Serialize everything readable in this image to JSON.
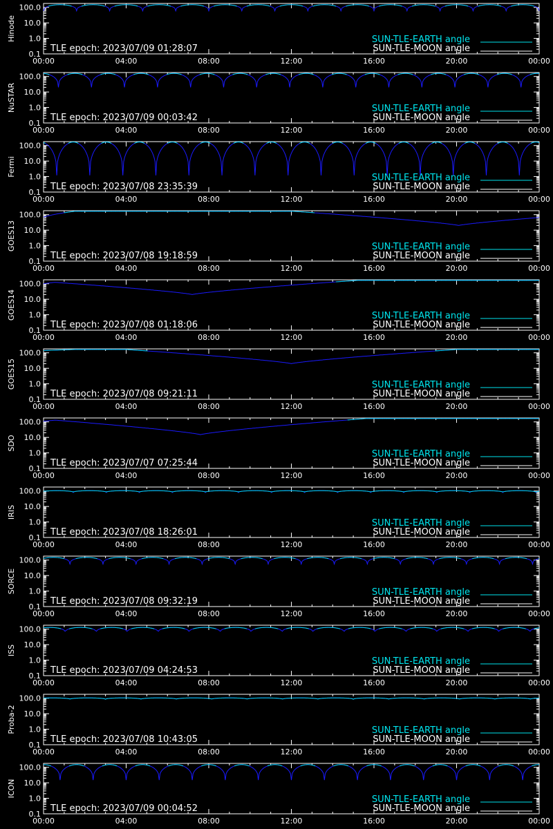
{
  "colors": {
    "background": "#000000",
    "axes": "#ffffff",
    "sun_tle_earth": "#00e5ee",
    "sun_tle_moon": "#ffffff",
    "curve": "#1a1aff"
  },
  "legend": {
    "earth_label": "SUN-TLE-EARTH angle",
    "moon_label": "SUN-TLE-MOON angle"
  },
  "chart_data": [
    {
      "type": "line",
      "ylabel": "Hinode",
      "epoch": "TLE epoch: 2023/07/09 01:28:07",
      "ylog": true,
      "ylim": [
        0.1,
        180
      ],
      "x": [
        "00:00",
        "04:00",
        "08:00",
        "12:00",
        "16:00",
        "20:00",
        "00:00"
      ],
      "yticks": [
        "100.0",
        "10.0",
        "1.0",
        "0.1"
      ],
      "curve": {
        "kind": "periodic",
        "max": 150,
        "min": 60,
        "periods": 15,
        "phase": 0.0
      }
    },
    {
      "type": "line",
      "ylabel": "NuSTAR",
      "epoch": "TLE epoch: 2023/07/09 00:03:42",
      "ylog": true,
      "ylim": [
        0.1,
        180
      ],
      "x": [
        "00:00",
        "04:00",
        "08:00",
        "12:00",
        "16:00",
        "20:00",
        "00:00"
      ],
      "yticks": [
        "100.0",
        "10.0",
        "1.0",
        "0.1"
      ],
      "curve": {
        "kind": "periodic",
        "max": 160,
        "min": 20,
        "periods": 15,
        "phase": 0.55
      }
    },
    {
      "type": "line",
      "ylabel": "Fermi",
      "epoch": "TLE epoch: 2023/07/08 23:35:39",
      "ylog": true,
      "ylim": [
        0.1,
        180
      ],
      "x": [
        "00:00",
        "04:00",
        "08:00",
        "12:00",
        "16:00",
        "20:00",
        "00:00"
      ],
      "yticks": [
        "100.0",
        "10.0",
        "1.0",
        "0.1"
      ],
      "curve": {
        "kind": "periodic",
        "max": 170,
        "min": 1.2,
        "periods": 15,
        "phase": 0.6
      }
    },
    {
      "type": "line",
      "ylabel": "GOES13",
      "epoch": "TLE epoch: 2023/07/08 19:18:59",
      "ylog": true,
      "ylim": [
        0.1,
        180
      ],
      "x": [
        "00:00",
        "04:00",
        "08:00",
        "12:00",
        "16:00",
        "20:00",
        "00:00"
      ],
      "yticks": [
        "100.0",
        "10.0",
        "1.0",
        "0.1"
      ],
      "curve": {
        "kind": "valley",
        "max": 165,
        "min": 20,
        "center_hour": 20.1,
        "start": 70
      }
    },
    {
      "type": "line",
      "ylabel": "GOES14",
      "epoch": "TLE epoch: 2023/07/08 01:18:06",
      "ylog": true,
      "ylim": [
        0.1,
        180
      ],
      "x": [
        "00:00",
        "04:00",
        "08:00",
        "12:00",
        "16:00",
        "20:00",
        "00:00"
      ],
      "yticks": [
        "100.0",
        "10.0",
        "1.0",
        "0.1"
      ],
      "curve": {
        "kind": "valley",
        "max": 165,
        "min": 20,
        "center_hour": 7.2,
        "start": 100
      }
    },
    {
      "type": "line",
      "ylabel": "GOES15",
      "epoch": "TLE epoch: 2023/07/08 09:21:11",
      "ylog": true,
      "ylim": [
        0.1,
        180
      ],
      "x": [
        "00:00",
        "04:00",
        "08:00",
        "12:00",
        "16:00",
        "20:00",
        "00:00"
      ],
      "yticks": [
        "100.0",
        "10.0",
        "1.0",
        "0.1"
      ],
      "curve": {
        "kind": "valley",
        "max": 165,
        "min": 20,
        "center_hour": 12.0,
        "start": 140
      }
    },
    {
      "type": "line",
      "ylabel": "SDO",
      "epoch": "TLE epoch: 2023/07/07 07:25:44",
      "ylog": true,
      "ylim": [
        0.1,
        180
      ],
      "x": [
        "00:00",
        "04:00",
        "08:00",
        "12:00",
        "16:00",
        "20:00",
        "00:00"
      ],
      "yticks": [
        "100.0",
        "10.0",
        "1.0",
        "0.1"
      ],
      "curve": {
        "kind": "valley",
        "max": 165,
        "min": 15,
        "center_hour": 7.6,
        "start": 110
      }
    },
    {
      "type": "line",
      "ylabel": "IRIS",
      "epoch": "TLE epoch: 2023/07/08 18:26:01",
      "ylog": true,
      "ylim": [
        0.1,
        180
      ],
      "x": [
        "00:00",
        "04:00",
        "08:00",
        "12:00",
        "16:00",
        "20:00",
        "00:00"
      ],
      "yticks": [
        "100.0",
        "10.0",
        "1.0",
        "0.1"
      ],
      "curve": {
        "kind": "periodic",
        "max": 105,
        "min": 80,
        "periods": 15,
        "phase": 0.1
      }
    },
    {
      "type": "line",
      "ylabel": "SORCE",
      "epoch": "TLE epoch: 2023/07/08 09:32:19",
      "ylog": true,
      "ylim": [
        0.1,
        180
      ],
      "x": [
        "00:00",
        "04:00",
        "08:00",
        "12:00",
        "16:00",
        "20:00",
        "00:00"
      ],
      "yticks": [
        "100.0",
        "10.0",
        "1.0",
        "0.1"
      ],
      "curve": {
        "kind": "periodic",
        "max": 150,
        "min": 55,
        "periods": 15,
        "phase": 0.2
      }
    },
    {
      "type": "line",
      "ylabel": "ISS",
      "epoch": "TLE epoch: 2023/07/09 04:24:53",
      "ylog": true,
      "ylim": [
        0.1,
        180
      ],
      "x": [
        "00:00",
        "04:00",
        "08:00",
        "12:00",
        "16:00",
        "20:00",
        "00:00"
      ],
      "yticks": [
        "100.0",
        "10.0",
        "1.0",
        "0.1"
      ],
      "curve": {
        "kind": "periodic",
        "max": 130,
        "min": 60,
        "periods": 16,
        "phase": 0.3
      }
    },
    {
      "type": "line",
      "ylabel": "Proba-2",
      "epoch": "TLE epoch: 2023/07/08 10:43:05",
      "ylog": true,
      "ylim": [
        0.1,
        180
      ],
      "x": [
        "00:00",
        "04:00",
        "08:00",
        "12:00",
        "16:00",
        "20:00",
        "00:00"
      ],
      "yticks": [
        "100.0",
        "10.0",
        "1.0",
        "0.1"
      ],
      "curve": {
        "kind": "periodic",
        "max": 105,
        "min": 85,
        "periods": 14,
        "phase": 0.25
      }
    },
    {
      "type": "line",
      "ylabel": "ICON",
      "epoch": "TLE epoch: 2023/07/09 00:04:52",
      "ylog": true,
      "ylim": [
        0.1,
        180
      ],
      "x": [
        "00:00",
        "04:00",
        "08:00",
        "12:00",
        "16:00",
        "20:00",
        "00:00"
      ],
      "yticks": [
        "100.0",
        "10.0",
        "1.0",
        "0.1"
      ],
      "curve": {
        "kind": "periodic",
        "max": 150,
        "min": 15,
        "periods": 15,
        "phase": 0.5
      }
    }
  ]
}
